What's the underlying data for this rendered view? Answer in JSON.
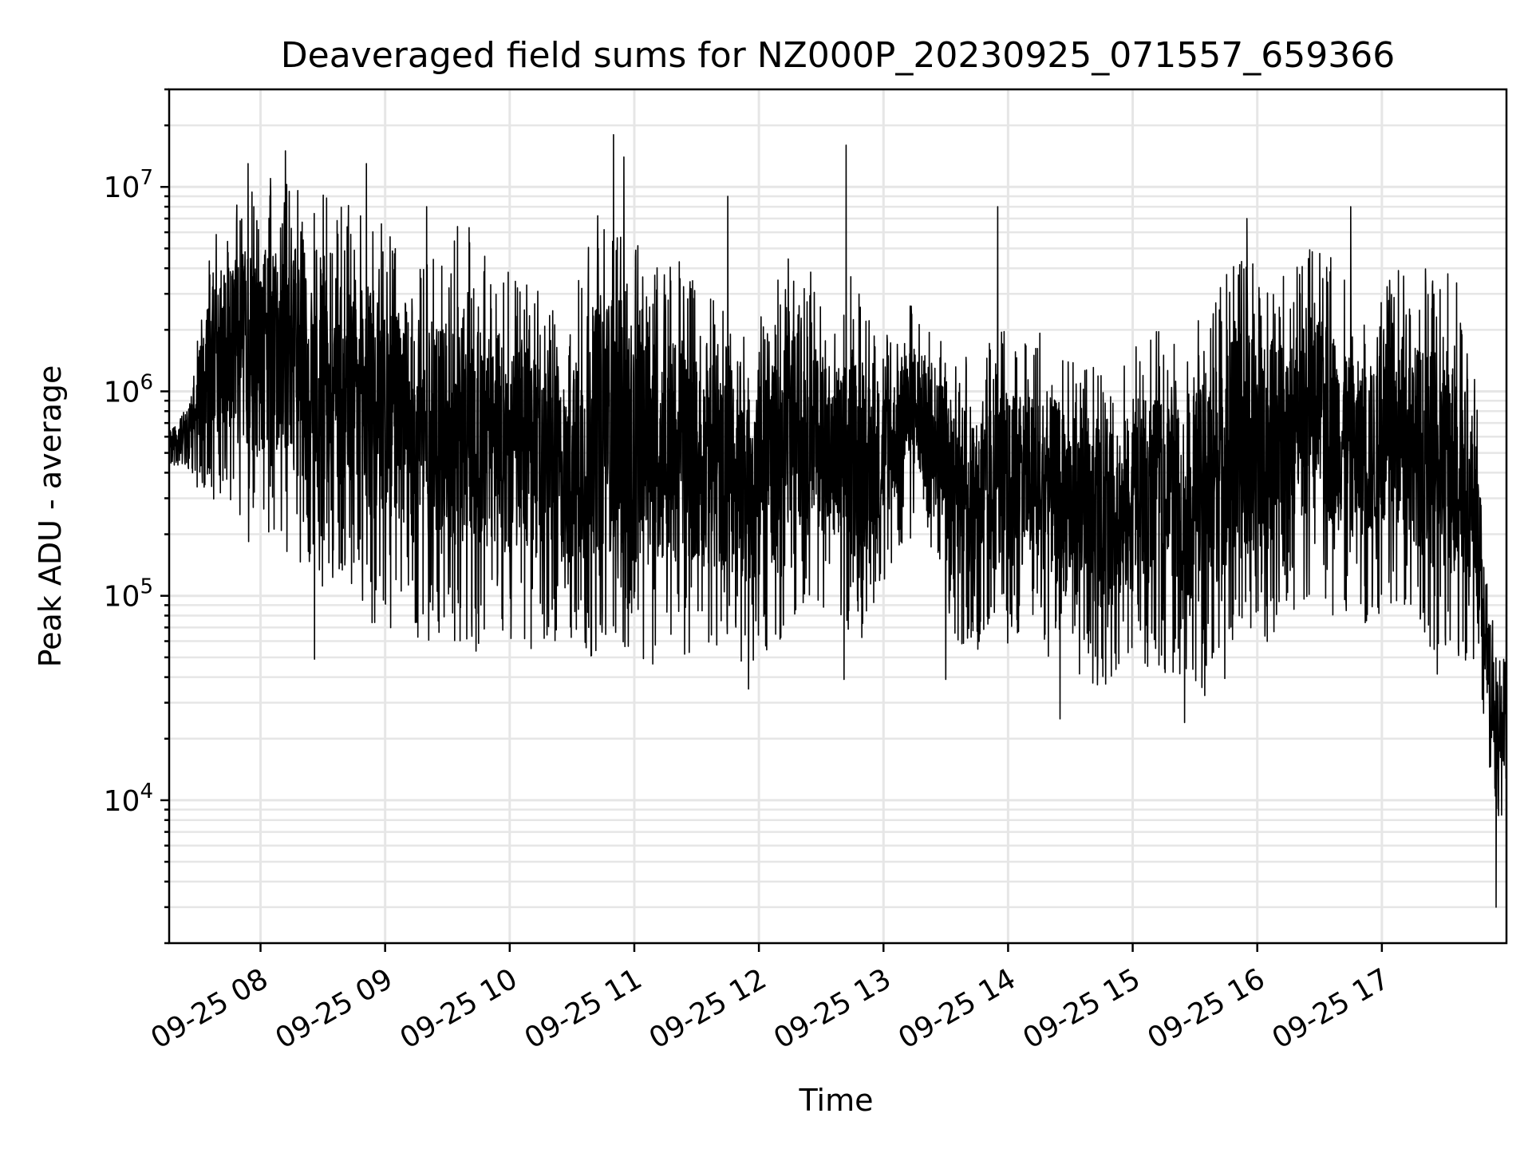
{
  "chart_data": {
    "type": "line",
    "title": "Deaveraged field sums for NZ000P_20230925_071557_659366",
    "xlabel": "Time",
    "ylabel": "Peak ADU - average",
    "yscale": "log",
    "ylim": [
      2000,
      30000000
    ],
    "xlim": [
      "2023-09-25 07:16",
      "2023-09-25 18:00"
    ],
    "grid": true,
    "x_tick_labels": [
      "09-25 08",
      "09-25 09",
      "09-25 10",
      "09-25 11",
      "09-25 12",
      "09-25 13",
      "09-25 14",
      "09-25 15",
      "09-25 16",
      "09-25 17"
    ],
    "x_tick_times": [
      "2023-09-25 08:00",
      "2023-09-25 09:00",
      "2023-09-25 10:00",
      "2023-09-25 11:00",
      "2023-09-25 12:00",
      "2023-09-25 13:00",
      "2023-09-25 14:00",
      "2023-09-25 15:00",
      "2023-09-25 16:00",
      "2023-09-25 17:00"
    ],
    "y_tick_values": [
      10000,
      100000,
      1000000,
      10000000
    ],
    "y_tick_labels": [
      {
        "base": "10",
        "exp": "4"
      },
      {
        "base": "10",
        "exp": "5"
      },
      {
        "base": "10",
        "exp": "6"
      },
      {
        "base": "10",
        "exp": "7"
      }
    ],
    "series": [
      {
        "color": "#000000",
        "x": [
          "2023-09-25 07:16",
          "2023-09-25 07:25",
          "2023-09-25 07:35",
          "2023-09-25 07:45",
          "2023-09-25 07:55",
          "2023-09-25 08:05",
          "2023-09-25 08:15",
          "2023-09-25 08:25",
          "2023-09-25 08:35",
          "2023-09-25 08:45",
          "2023-09-25 08:55",
          "2023-09-25 09:05",
          "2023-09-25 09:15",
          "2023-09-25 09:25",
          "2023-09-25 09:35",
          "2023-09-25 09:45",
          "2023-09-25 09:55",
          "2023-09-25 10:05",
          "2023-09-25 10:15",
          "2023-09-25 10:25",
          "2023-09-25 10:35",
          "2023-09-25 10:45",
          "2023-09-25 10:55",
          "2023-09-25 11:05",
          "2023-09-25 11:15",
          "2023-09-25 11:25",
          "2023-09-25 11:35",
          "2023-09-25 11:45",
          "2023-09-25 11:55",
          "2023-09-25 12:05",
          "2023-09-25 12:15",
          "2023-09-25 12:25",
          "2023-09-25 12:35",
          "2023-09-25 12:45",
          "2023-09-25 12:55",
          "2023-09-25 13:05",
          "2023-09-25 13:15",
          "2023-09-25 13:25",
          "2023-09-25 13:35",
          "2023-09-25 13:45",
          "2023-09-25 13:55",
          "2023-09-25 14:05",
          "2023-09-25 14:15",
          "2023-09-25 14:25",
          "2023-09-25 14:35",
          "2023-09-25 14:45",
          "2023-09-25 14:55",
          "2023-09-25 15:05",
          "2023-09-25 15:15",
          "2023-09-25 15:25",
          "2023-09-25 15:35",
          "2023-09-25 15:45",
          "2023-09-25 15:55",
          "2023-09-25 16:05",
          "2023-09-25 16:15",
          "2023-09-25 16:25",
          "2023-09-25 16:35",
          "2023-09-25 16:45",
          "2023-09-25 16:55",
          "2023-09-25 17:05",
          "2023-09-25 17:15",
          "2023-09-25 17:25",
          "2023-09-25 17:35",
          "2023-09-25 17:45",
          "2023-09-25 17:50",
          "2023-09-25 17:55",
          "2023-09-25 18:00"
        ],
        "low": [
          450000,
          400000,
          280000,
          300000,
          150000,
          200000,
          150000,
          100000,
          120000,
          100000,
          60000,
          70000,
          60000,
          50000,
          55000,
          50000,
          60000,
          50000,
          60000,
          55000,
          50000,
          45000,
          45000,
          45000,
          45000,
          50000,
          50000,
          50000,
          45000,
          50000,
          70000,
          100000,
          80000,
          50000,
          80000,
          150000,
          200000,
          150000,
          60000,
          50000,
          50000,
          60000,
          60000,
          40000,
          35000,
          35000,
          40000,
          45000,
          40000,
          40000,
          30000,
          40000,
          50000,
          60000,
          80000,
          100000,
          80000,
          80000,
          70000,
          80000,
          70000,
          40000,
          40000,
          50000,
          20000,
          7000,
          10000
        ],
        "high": [
          700000,
          900000,
          5000000,
          8000000,
          10000000,
          12000000,
          10000000,
          9000000,
          10000000,
          9000000,
          7000000,
          6000000,
          5000000,
          5000000,
          7000000,
          6000000,
          4000000,
          4000000,
          3000000,
          2500000,
          4000000,
          10000000,
          6000000,
          5000000,
          5000000,
          4000000,
          3000000,
          2500000,
          2000000,
          3000000,
          5000000,
          4000000,
          2000000,
          4000000,
          2000000,
          2000000,
          3000000,
          2000000,
          1500000,
          1500000,
          2000000,
          2000000,
          2000000,
          2000000,
          1500000,
          1200000,
          1500000,
          2000000,
          2000000,
          1500000,
          3000000,
          5000000,
          5000000,
          4000000,
          4000000,
          5000000,
          5000000,
          3000000,
          3000000,
          4000000,
          4000000,
          4000000,
          4000000,
          1500000,
          150000,
          60000,
          50000
        ],
        "spikes": [
          {
            "x": "2023-09-25 07:54",
            "y": 13000000
          },
          {
            "x": "2023-09-25 08:12",
            "y": 15000000
          },
          {
            "x": "2023-09-25 08:51",
            "y": 13000000
          },
          {
            "x": "2023-09-25 10:50",
            "y": 18000000
          },
          {
            "x": "2023-09-25 12:42",
            "y": 16000000
          },
          {
            "x": "2023-09-25 10:55",
            "y": 14000000
          },
          {
            "x": "2023-09-25 09:20",
            "y": 8000000
          },
          {
            "x": "2023-09-25 11:45",
            "y": 9000000
          },
          {
            "x": "2023-09-25 13:55",
            "y": 8000000
          },
          {
            "x": "2023-09-25 15:55",
            "y": 7000000
          },
          {
            "x": "2023-09-25 16:45",
            "y": 8000000
          },
          {
            "x": "2023-09-25 17:55",
            "y": 3000
          },
          {
            "x": "2023-09-25 14:25",
            "y": 25000
          },
          {
            "x": "2023-09-25 15:25",
            "y": 24000
          },
          {
            "x": "2023-09-25 11:55",
            "y": 35000
          },
          {
            "x": "2023-09-25 08:26",
            "y": 49000
          },
          {
            "x": "2023-09-25 12:41",
            "y": 39000
          },
          {
            "x": "2023-09-25 13:30",
            "y": 39000
          }
        ]
      }
    ]
  }
}
